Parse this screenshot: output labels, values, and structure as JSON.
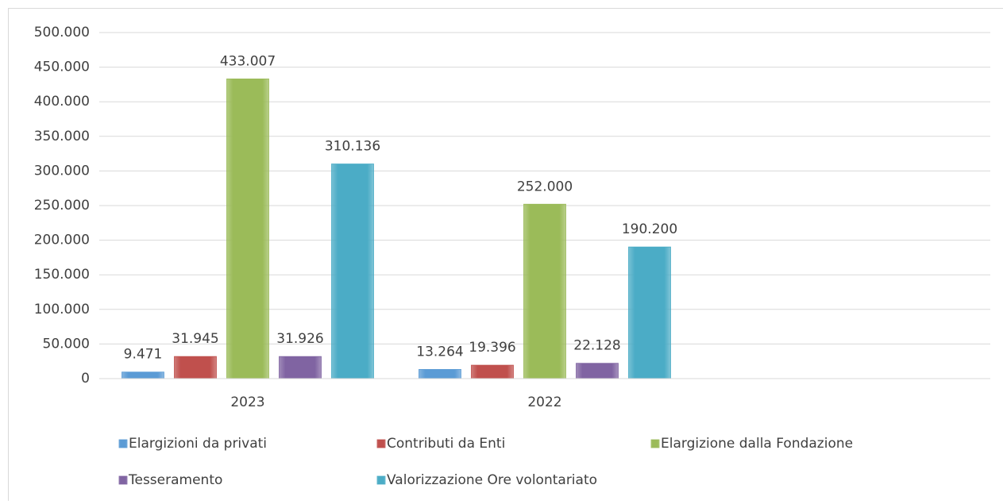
{
  "chart_data": {
    "type": "bar",
    "categories": [
      "2023",
      "2022",
      null
    ],
    "series": [
      {
        "name": "Elargizioni da privati",
        "color": "#5b9bd5",
        "values": [
          9471,
          13264,
          null
        ],
        "value_labels": [
          "9.471",
          "13.264",
          null
        ]
      },
      {
        "name": "Contributi da Enti",
        "color": "#c0504d",
        "values": [
          31945,
          19396,
          null
        ],
        "value_labels": [
          "31.945",
          "19.396",
          null
        ]
      },
      {
        "name": "Elargizione dalla Fondazione",
        "color": "#9bbb59",
        "values": [
          433007,
          252000,
          null
        ],
        "value_labels": [
          "433.007",
          "252.000",
          null
        ]
      },
      {
        "name": "Tesseramento",
        "color": "#8064a2",
        "values": [
          31926,
          22128,
          null
        ],
        "value_labels": [
          "31.926",
          "22.128",
          null
        ]
      },
      {
        "name": "Valorizzazione Ore volontariato",
        "color": "#4bacc6",
        "values": [
          310136,
          190200,
          null
        ],
        "value_labels": [
          "310.136",
          "190.200",
          null
        ]
      }
    ],
    "ylim": [
      0,
      500000
    ],
    "yticks": [
      {
        "value": 0,
        "label": "0"
      },
      {
        "value": 50000,
        "label": "50.000"
      },
      {
        "value": 100000,
        "label": "100.000"
      },
      {
        "value": 150000,
        "label": "150.000"
      },
      {
        "value": 200000,
        "label": "200.000"
      },
      {
        "value": 250000,
        "label": "250.000"
      },
      {
        "value": 300000,
        "label": "300.000"
      },
      {
        "value": 350000,
        "label": "350.000"
      },
      {
        "value": 400000,
        "label": "400.000"
      },
      {
        "value": 450000,
        "label": "450.000"
      },
      {
        "value": 500000,
        "label": "500.000"
      }
    ],
    "grid": true,
    "legend": "bottom"
  }
}
